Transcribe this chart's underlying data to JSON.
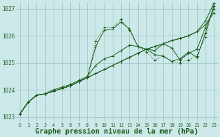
{
  "background_color": "#cce8e8",
  "grid_color": "#9bbfbf",
  "line_color": "#1a5c1a",
  "marker_color": "#1a5c1a",
  "xlabel": "Graphe pression niveau de la mer (hPa)",
  "xlabel_fontsize": 7.5,
  "ylim": [
    1022.8,
    1027.25
  ],
  "xlim": [
    -0.5,
    23.5
  ],
  "yticks": [
    1023,
    1024,
    1025,
    1026,
    1027
  ],
  "xticks": [
    0,
    1,
    2,
    3,
    4,
    5,
    6,
    7,
    8,
    9,
    10,
    11,
    12,
    13,
    14,
    15,
    16,
    17,
    18,
    19,
    20,
    21,
    22,
    23
  ],
  "series": [
    {
      "y": [
        1023.1,
        1023.55,
        1023.8,
        1023.85,
        1023.95,
        1024.05,
        1024.15,
        1024.3,
        1024.45,
        1024.6,
        1024.75,
        1024.9,
        1025.05,
        1025.2,
        1025.35,
        1025.5,
        1025.6,
        1025.7,
        1025.82,
        1025.9,
        1026.0,
        1026.15,
        1026.4,
        1026.85
      ],
      "linestyle": "solid",
      "linewidth": 0.7,
      "marker": true,
      "dashes": []
    },
    {
      "y": [
        1023.1,
        1023.55,
        1023.8,
        1023.85,
        1023.95,
        1024.05,
        1024.15,
        1024.3,
        1024.45,
        1024.6,
        1024.75,
        1024.9,
        1025.05,
        1025.2,
        1025.35,
        1025.5,
        1025.6,
        1025.7,
        1025.82,
        1025.9,
        1026.0,
        1026.15,
        1026.55,
        1027.2
      ],
      "linestyle": "solid",
      "linewidth": 0.7,
      "marker": true,
      "dashes": []
    },
    {
      "y": [
        1023.1,
        1023.55,
        1023.8,
        1023.85,
        1023.95,
        1024.05,
        1024.15,
        1024.3,
        1024.45,
        1025.6,
        1026.2,
        1026.25,
        1026.5,
        1026.25,
        1025.6,
        1025.5,
        1025.3,
        1025.25,
        1025.05,
        1025.15,
        1025.4,
        1025.2,
        1026.1,
        1027.1
      ],
      "linestyle": "solid",
      "linewidth": 0.7,
      "marker": true,
      "dashes": []
    },
    {
      "y": [
        1023.1,
        1023.55,
        1023.8,
        1023.85,
        1023.95,
        1024.05,
        1024.15,
        1024.3,
        1024.45,
        1025.8,
        1026.3,
        1026.3,
        1026.6,
        1026.2,
        1025.6,
        1025.4,
        1025.1,
        1025.25,
        1025.05,
        1025.0,
        1025.1,
        1025.25,
        1025.95,
        1027.2
      ],
      "linestyle": "dotted",
      "linewidth": 0.7,
      "marker": true,
      "dashes": [
        1,
        2
      ]
    },
    {
      "y": [
        1023.1,
        1023.55,
        1023.8,
        1023.85,
        1024.0,
        1024.1,
        1024.2,
        1024.35,
        1024.5,
        1024.9,
        1025.15,
        1025.25,
        1025.45,
        1025.65,
        1025.6,
        1025.5,
        1025.45,
        1025.7,
        1025.55,
        1025.1,
        1025.35,
        1025.5,
        1026.3,
        1027.0
      ],
      "linestyle": "solid",
      "linewidth": 0.7,
      "marker": true,
      "dashes": []
    }
  ]
}
